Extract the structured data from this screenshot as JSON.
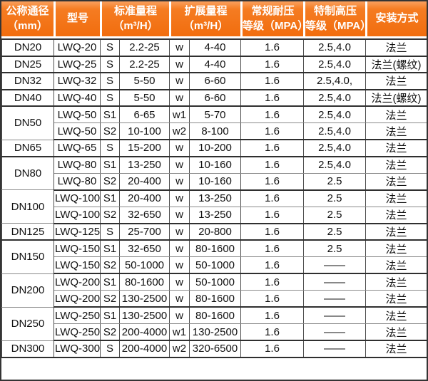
{
  "colors": {
    "header_orange": "#f16d0e",
    "header_orange_highlight": "#f9a05e",
    "header_text": "#ffffff",
    "border_dark": "#343434",
    "border_thin_gray": "#8a8a8a",
    "body_text": "#111111",
    "background": "#ffffff"
  },
  "table": {
    "header": [
      {
        "line1": "公称通径",
        "line2": "（mm）"
      },
      {
        "line1": "型号",
        "line2": ""
      },
      {
        "line1": "标准量程",
        "line2": "（m³/H）"
      },
      {
        "line1": "扩展量程",
        "line2": "（m³/H）"
      },
      {
        "line1": "常规耐压",
        "line2": "等级（MPA）"
      },
      {
        "line1": "特制高压",
        "line2": "等级（MPA）"
      },
      {
        "line1": "安装方式",
        "line2": ""
      }
    ],
    "rows": [
      {
        "dn": "DN20",
        "dn_rowspan": 1,
        "model": "LWQ-20",
        "std_code": "S",
        "std_range": "2.2-25",
        "ext_code": "w",
        "ext_range": "4-40",
        "pressure": "1.6",
        "high_pressure": "2.5,4.0",
        "install": "法兰",
        "group_end": true
      },
      {
        "dn": "DN25",
        "dn_rowspan": 1,
        "model": "LWQ-25",
        "std_code": "S",
        "std_range": "2.2-25",
        "ext_code": "w",
        "ext_range": "4-40",
        "pressure": "1.6",
        "high_pressure": "2.5,4.0",
        "install": "法兰(螺纹)",
        "group_end": true
      },
      {
        "dn": "DN32",
        "dn_rowspan": 1,
        "model": "LWQ-32",
        "std_code": "S",
        "std_range": "5-50",
        "ext_code": "w",
        "ext_range": "6-60",
        "pressure": "1.6",
        "high_pressure": "2.5,4.0,",
        "install": "法兰",
        "group_end": true
      },
      {
        "dn": "DN40",
        "dn_rowspan": 1,
        "model": "LWQ-40",
        "std_code": "S",
        "std_range": "5-50",
        "ext_code": "w",
        "ext_range": "6-60",
        "pressure": "1.6",
        "high_pressure": "2.5,4.0",
        "install": "法兰(螺纹)",
        "group_end": true
      },
      {
        "dn": "DN50",
        "dn_rowspan": 2,
        "model": "LWQ-50",
        "std_code": "S1",
        "std_range": "6-65",
        "ext_code": "w1",
        "ext_range": "5-70",
        "pressure": "1.6",
        "high_pressure": "2.5,4.0",
        "install": "法兰",
        "group_end": false
      },
      {
        "model": "LWQ-50",
        "std_code": "S2",
        "std_range": "10-100",
        "ext_code": "w2",
        "ext_range": "8-100",
        "pressure": "1.6",
        "high_pressure": "2.5,4.0",
        "install": "法兰",
        "group_end": true
      },
      {
        "dn": "DN65",
        "dn_rowspan": 1,
        "model": "LWQ-65",
        "std_code": "S",
        "std_range": "15-200",
        "ext_code": "w",
        "ext_range": "10-200",
        "pressure": "1.6",
        "high_pressure": "2.5,4.0",
        "install": "法兰",
        "group_end": true
      },
      {
        "dn": "DN80",
        "dn_rowspan": 2,
        "model": "LWQ-80",
        "std_code": "S1",
        "std_range": "13-250",
        "ext_code": "w",
        "ext_range": "10-160",
        "pressure": "1.6",
        "high_pressure": "2.5,4.0",
        "install": "法兰",
        "group_end": false
      },
      {
        "model": "LWQ-80",
        "std_code": "S2",
        "std_range": "20-400",
        "ext_code": "w",
        "ext_range": "10-160",
        "pressure": "1.6",
        "high_pressure": "2.5",
        "install": "法兰",
        "group_end": true
      },
      {
        "dn": "DN100",
        "dn_rowspan": 2,
        "model": "LWQ-100",
        "std_code": "S1",
        "std_range": "20-400",
        "ext_code": "w",
        "ext_range": "13-250",
        "pressure": "1.6",
        "high_pressure": "2.5",
        "install": "法兰",
        "group_end": false
      },
      {
        "model": "LWQ-100",
        "std_code": "S2",
        "std_range": "32-650",
        "ext_code": "w",
        "ext_range": "13-250",
        "pressure": "1.6",
        "high_pressure": "2.5",
        "install": "法兰",
        "group_end": true
      },
      {
        "dn": "DN125",
        "dn_rowspan": 1,
        "model": "LWQ-125",
        "std_code": "S",
        "std_range": "25-700",
        "ext_code": "w",
        "ext_range": "20-800",
        "pressure": "1.6",
        "high_pressure": "2.5",
        "install": "法兰",
        "group_end": true
      },
      {
        "dn": "DN150",
        "dn_rowspan": 2,
        "model": "LWQ-150",
        "std_code": "S1",
        "std_range": "32-650",
        "ext_code": "w",
        "ext_range": "80-1600",
        "pressure": "1.6",
        "high_pressure": "2.5",
        "install": "法兰",
        "group_end": false
      },
      {
        "model": "LWQ-150",
        "std_code": "S2",
        "std_range": "50-1000",
        "ext_code": "w",
        "ext_range": "50-1000",
        "pressure": "1.6",
        "high_pressure": "——",
        "install": "法兰",
        "group_end": true
      },
      {
        "dn": "DN200",
        "dn_rowspan": 2,
        "model": "LWQ-200",
        "std_code": "S1",
        "std_range": "80-1600",
        "ext_code": "w",
        "ext_range": "50-1000",
        "pressure": "1.6",
        "high_pressure": "——",
        "install": "法兰",
        "group_end": false
      },
      {
        "model": "LWQ-200",
        "std_code": "S2",
        "std_range": "130-2500",
        "ext_code": "w",
        "ext_range": "80-1600",
        "pressure": "1.6",
        "high_pressure": "——",
        "install": "法兰",
        "group_end": true
      },
      {
        "dn": "DN250",
        "dn_rowspan": 2,
        "model": "LWQ-250",
        "std_code": "S1",
        "std_range": "130-2500",
        "ext_code": "w",
        "ext_range": "80-1600",
        "pressure": "1.6",
        "high_pressure": "——",
        "install": "法兰",
        "group_end": false
      },
      {
        "model": "LWQ-250",
        "std_code": "S2",
        "std_range": "200-4000",
        "ext_code": "w1",
        "ext_range": "130-2500",
        "pressure": "1.6",
        "high_pressure": "——",
        "install": "法兰",
        "group_end": true
      },
      {
        "dn": "DN300",
        "dn_rowspan": 1,
        "model": "LWQ-300",
        "std_code": "S",
        "std_range": "200-4000",
        "ext_code": "w2",
        "ext_range": "320-6500",
        "pressure": "1.6",
        "high_pressure": "——",
        "install": "法兰",
        "group_end": true
      }
    ]
  }
}
